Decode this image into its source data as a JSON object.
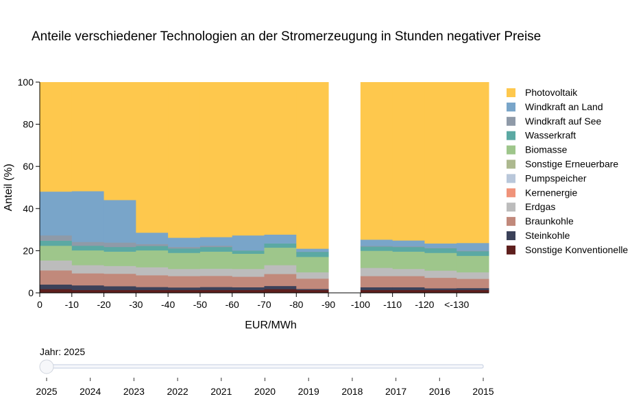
{
  "chart_data": {
    "type": "area",
    "step": true,
    "stacked": true,
    "title": "Anteile verschiedener Technologien an der Stromerzeugung in Stunden negativer Preise",
    "xlabel": "EUR/MWh",
    "ylabel": "Anteil (%)",
    "ylim": [
      0,
      100
    ],
    "yticks": [
      "0",
      "20",
      "40",
      "60",
      "80",
      "100"
    ],
    "xticks": [
      "0",
      "-10",
      "-20",
      "-30",
      "-40",
      "-50",
      "-60",
      "-70",
      "-80",
      "-90",
      "-100",
      "-110",
      "-120",
      "<-130"
    ],
    "bins": [
      "0 bis -10",
      "-10 bis -20",
      "-20 bis -30",
      "-30 bis -40",
      "-40 bis -50",
      "-50 bis -60",
      "-60 bis -70",
      "-70 bis -80",
      "-80 bis -90",
      "-90 bis -100",
      "-100 bis -110",
      "-110 bis -120",
      "-120 bis -130",
      "<-130"
    ],
    "legend_position": "right",
    "grid": false,
    "series": [
      {
        "name": "Sonstige Konventionelle",
        "color": "#5e1f1d",
        "values": [
          1.8,
          1.4,
          1.4,
          1.4,
          1.4,
          1.4,
          1.4,
          1.8,
          1.4,
          null,
          1.4,
          1.4,
          1.4,
          1.4
        ]
      },
      {
        "name": "Steinkohle",
        "color": "#3b4159",
        "values": [
          2.2,
          2.2,
          1.8,
          1.4,
          1.2,
          1.4,
          1.3,
          1.5,
          0.5,
          null,
          1.3,
          1.3,
          0.8,
          0.9
        ]
      },
      {
        "name": "Braunkohle",
        "color": "#c1897b",
        "values": [
          6.7,
          5.7,
          5.9,
          5.6,
          5.4,
          5.3,
          5.0,
          5.7,
          4.9,
          null,
          5.3,
          5.3,
          5.0,
          4.4
        ]
      },
      {
        "name": "Erdgas",
        "color": "#bcbcbc",
        "values": [
          4.7,
          3.9,
          3.7,
          3.8,
          3.4,
          3.4,
          3.7,
          4.2,
          3.0,
          null,
          3.9,
          3.4,
          3.4,
          3.1
        ]
      },
      {
        "name": "Kernenergie",
        "color": "#f0937a",
        "values": [
          0,
          0,
          0,
          0,
          0,
          0,
          0,
          0,
          0,
          null,
          0,
          0,
          0,
          0
        ]
      },
      {
        "name": "Pumpspeicher",
        "color": "#b9c7da",
        "values": [
          0,
          0,
          0,
          0,
          0,
          0,
          0,
          0,
          0,
          null,
          0,
          0,
          0,
          0
        ]
      },
      {
        "name": "Sonstige Erneuerbare",
        "color": "#adb98f",
        "values": [
          0,
          0,
          0,
          0,
          0,
          0,
          0,
          0,
          0,
          null,
          0,
          0,
          0,
          0
        ]
      },
      {
        "name": "Biomasse",
        "color": "#9ec68b",
        "values": [
          7.0,
          7.0,
          6.8,
          8.0,
          7.6,
          8.1,
          7.2,
          8.3,
          7.3,
          null,
          8.1,
          8.2,
          8.4,
          7.8
        ]
      },
      {
        "name": "Wasserkraft",
        "color": "#5ba9a3",
        "values": [
          2.4,
          2.2,
          2.2,
          2.1,
          2.1,
          2.2,
          1.5,
          2.0,
          2.4,
          null,
          2.0,
          2.2,
          2.2,
          2.2
        ]
      },
      {
        "name": "Windkraft auf See",
        "color": "#8f9aa8",
        "values": [
          2.5,
          1.8,
          2.1,
          0.9,
          0.7,
          0.6,
          0.1,
          0.0,
          0.1,
          null,
          0.3,
          0.3,
          0.2,
          0.3
        ]
      },
      {
        "name": "Windkraft an Land",
        "color": "#79a5c9",
        "values": [
          20.8,
          24.1,
          20.2,
          5.4,
          4.4,
          4.1,
          7.1,
          4.2,
          1.4,
          null,
          3.0,
          2.8,
          2.1,
          3.6
        ]
      },
      {
        "name": "Photovoltaik",
        "color": "#fec84d",
        "values": [
          51.9,
          51.7,
          55.9,
          71.4,
          73.8,
          73.5,
          72.7,
          72.3,
          79.0,
          null,
          74.7,
          75.1,
          76.5,
          76.3
        ]
      }
    ],
    "legend_order": [
      "Photovoltaik",
      "Windkraft an Land",
      "Windkraft auf See",
      "Wasserkraft",
      "Biomasse",
      "Sonstige Erneuerbare",
      "Pumpspeicher",
      "Kernenergie",
      "Erdgas",
      "Braunkohle",
      "Steinkohle",
      "Sonstige Konventionelle"
    ]
  },
  "slider": {
    "label": "Jahr: 2025",
    "value": "2025",
    "years": [
      "2025",
      "2024",
      "2023",
      "2022",
      "2021",
      "2020",
      "2019",
      "2018",
      "2017",
      "2016",
      "2015"
    ]
  }
}
